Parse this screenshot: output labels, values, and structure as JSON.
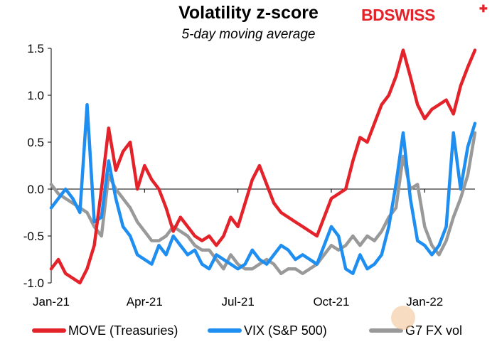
{
  "chart_data": {
    "type": "line",
    "title": "Volatility z-score",
    "subtitle": "5-day moving average",
    "brand": "BDSWISS",
    "ylim": [
      -1.0,
      1.5
    ],
    "yticks": [
      -1.0,
      -0.5,
      0.0,
      0.5,
      1.0,
      1.5
    ],
    "ytick_labels": [
      "-1.0",
      "-0.5",
      "0.0",
      "0.5",
      "1.0",
      "1.5"
    ],
    "xlim": [
      0,
      59
    ],
    "xticks": [
      0,
      13,
      26,
      39,
      52
    ],
    "xtick_labels": [
      "Jan-21",
      "Apr-21",
      "Jul-21",
      "Oct-21",
      "Jan-22"
    ],
    "grid": false,
    "legend_position": "bottom",
    "series": [
      {
        "name": "MOVE (Treasuries)",
        "color": "#e4222a",
        "values": [
          -0.85,
          -0.75,
          -0.9,
          -0.95,
          -1.0,
          -0.85,
          -0.6,
          0.0,
          0.65,
          0.2,
          0.4,
          0.5,
          0.0,
          0.25,
          0.1,
          0.0,
          -0.2,
          -0.45,
          -0.3,
          -0.4,
          -0.5,
          -0.55,
          -0.5,
          -0.6,
          -0.5,
          -0.3,
          -0.4,
          -0.15,
          0.1,
          0.25,
          0.05,
          -0.15,
          -0.25,
          -0.3,
          -0.35,
          -0.4,
          -0.45,
          -0.5,
          -0.3,
          -0.1,
          -0.05,
          0.0,
          0.3,
          0.55,
          0.5,
          0.7,
          0.9,
          1.0,
          1.2,
          1.48,
          1.2,
          0.9,
          0.75,
          0.85,
          0.9,
          0.95,
          0.8,
          1.1,
          1.3,
          1.48
        ]
      },
      {
        "name": "VIX (S&P 500)",
        "color": "#1e8ef0",
        "values": [
          -0.2,
          -0.1,
          0.0,
          -0.1,
          -0.25,
          0.9,
          -0.35,
          -0.3,
          0.3,
          -0.1,
          -0.4,
          -0.5,
          -0.7,
          -0.75,
          -0.8,
          -0.6,
          -0.7,
          -0.5,
          -0.6,
          -0.7,
          -0.65,
          -0.8,
          -0.85,
          -0.7,
          -0.75,
          -0.8,
          -0.85,
          -0.8,
          -0.65,
          -0.75,
          -0.8,
          -0.7,
          -0.6,
          -0.65,
          -0.75,
          -0.7,
          -0.75,
          -0.8,
          -0.6,
          -0.4,
          -0.5,
          -0.85,
          -0.9,
          -0.7,
          -0.85,
          -0.8,
          -0.7,
          -0.4,
          0.05,
          0.6,
          -0.1,
          -0.55,
          -0.6,
          -0.7,
          -0.6,
          -0.4,
          0.6,
          0.0,
          0.45,
          0.7
        ]
      },
      {
        "name": "G7 FX vol",
        "color": "#999999",
        "values": [
          0.05,
          -0.05,
          -0.1,
          -0.15,
          -0.2,
          -0.25,
          -0.4,
          -0.5,
          0.15,
          0.0,
          -0.1,
          -0.2,
          -0.35,
          -0.45,
          -0.55,
          -0.55,
          -0.5,
          -0.4,
          -0.45,
          -0.5,
          -0.6,
          -0.65,
          -0.65,
          -0.75,
          -0.85,
          -0.7,
          -0.8,
          -0.85,
          -0.85,
          -0.8,
          -0.75,
          -0.8,
          -0.9,
          -0.85,
          -0.85,
          -0.9,
          -0.85,
          -0.8,
          -0.7,
          -0.6,
          -0.65,
          -0.6,
          -0.5,
          -0.6,
          -0.5,
          -0.55,
          -0.45,
          -0.3,
          -0.2,
          0.35,
          0.0,
          0.05,
          -0.4,
          -0.6,
          -0.7,
          -0.55,
          -0.3,
          -0.1,
          0.15,
          0.6
        ]
      }
    ]
  }
}
